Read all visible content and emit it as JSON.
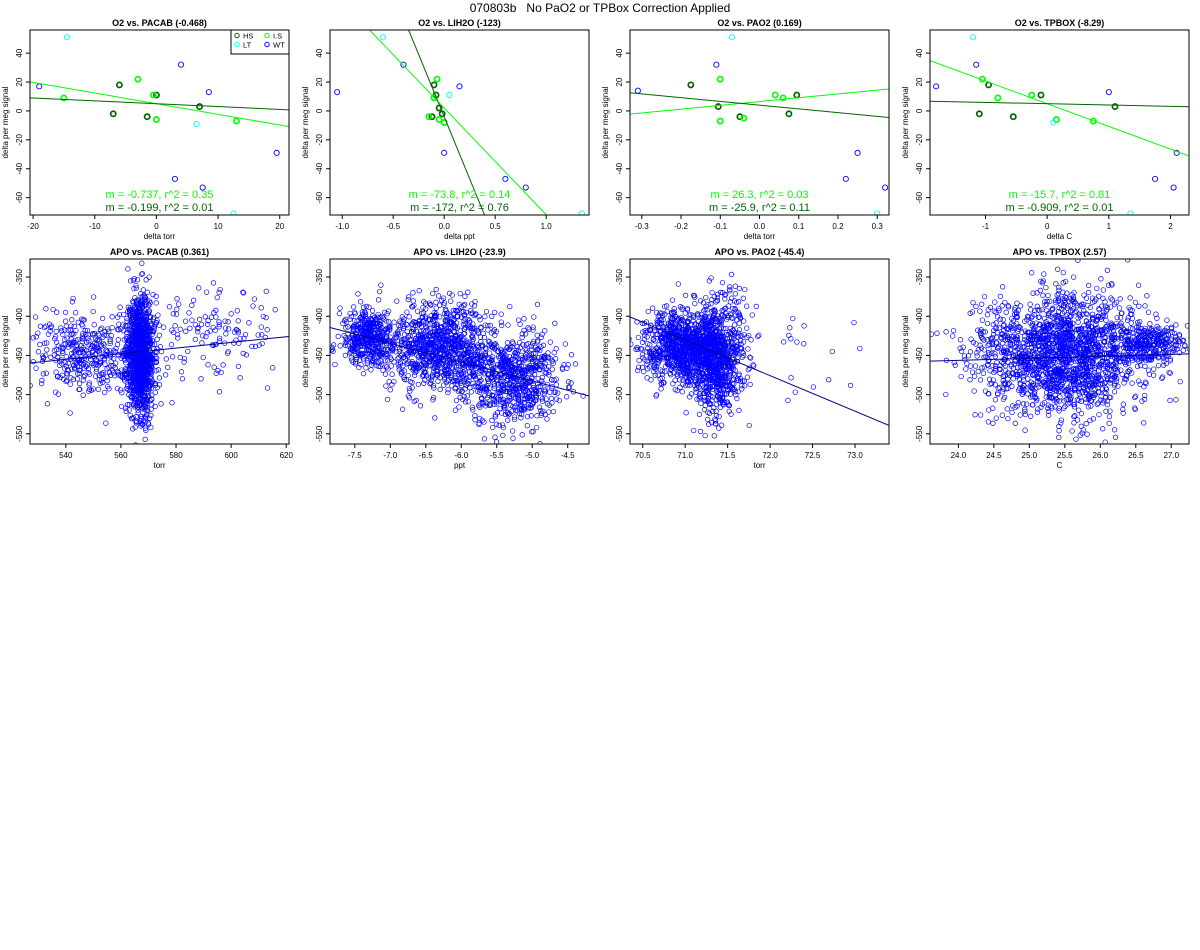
{
  "page": {
    "title": "070803b   No PaO2 or TPBox Correction Applied"
  },
  "colors": {
    "HS": "#006400",
    "I.S": "#00ff00",
    "LT": "#00ffff",
    "WT": "#0000ff",
    "apo": "#0000ff",
    "apo_line": "#00008b"
  },
  "legend": {
    "entries": [
      {
        "label": "HS",
        "color": "#006400"
      },
      {
        "label": "I.S",
        "color": "#00ff00"
      },
      {
        "label": "LT",
        "color": "#00ffff"
      },
      {
        "label": "WT",
        "color": "#0000ff"
      }
    ]
  },
  "chart_data": [
    {
      "type": "scatter",
      "panel": "o2",
      "title": "O2 vs. PACAB (-0.468)",
      "xlabel": "delta torr",
      "ylabel": "delta per meg signal",
      "xlim": [
        -20.5,
        21.5
      ],
      "ylim": [
        -72,
        56
      ],
      "xticks": [
        -20,
        -10,
        0,
        10,
        20
      ],
      "yticks": [
        -60,
        -40,
        -20,
        0,
        20,
        40
      ],
      "show_legend": true,
      "series": [
        {
          "name": "HS",
          "points": [
            [
              -6,
              18
            ],
            [
              -7,
              -2
            ],
            [
              -1.5,
              -4
            ],
            [
              0,
              11
            ],
            [
              7,
              3
            ]
          ]
        },
        {
          "name": "I.S",
          "points": [
            [
              -15,
              9
            ],
            [
              -3,
              22
            ],
            [
              -0.5,
              11
            ],
            [
              0,
              -6
            ],
            [
              13,
              -7
            ]
          ]
        },
        {
          "name": "LT",
          "points": [
            [
              -14.5,
              51
            ],
            [
              6.5,
              -9
            ],
            [
              12.5,
              -71
            ]
          ]
        },
        {
          "name": "WT",
          "points": [
            [
              -19,
              17
            ],
            [
              4,
              32
            ],
            [
              8.5,
              13
            ],
            [
              3,
              -47
            ],
            [
              7.5,
              -53
            ],
            [
              19.5,
              -29
            ]
          ]
        }
      ],
      "fits": [
        {
          "series": "I.S",
          "m": -0.737,
          "b": 5,
          "label": "m = -0.737, r^2 = 0.35"
        },
        {
          "series": "HS",
          "m": -0.199,
          "b": 5,
          "label": "m = -0.199, r^2 = 0.01"
        }
      ]
    },
    {
      "type": "scatter",
      "panel": "o2",
      "title": "O2 vs. LIH2O (-123)",
      "xlabel": "delta ppt",
      "ylabel": "delta per meg signal",
      "xlim": [
        -1.12,
        1.42
      ],
      "ylim": [
        -72,
        56
      ],
      "xticks": [
        -1.0,
        -0.5,
        0.0,
        0.5,
        1.0
      ],
      "yticks": [
        -60,
        -40,
        -20,
        0,
        20,
        40
      ],
      "xtick_labels": [
        "-1.0",
        "-0.5",
        "0.0",
        "0.5",
        "1.0"
      ],
      "show_legend": false,
      "series": [
        {
          "name": "HS",
          "points": [
            [
              -0.1,
              18
            ],
            [
              -0.08,
              11
            ],
            [
              -0.05,
              2
            ],
            [
              -0.12,
              -4
            ],
            [
              -0.02,
              -2
            ]
          ]
        },
        {
          "name": "I.S",
          "points": [
            [
              -0.07,
              22
            ],
            [
              -0.1,
              9
            ],
            [
              -0.05,
              -6
            ],
            [
              0.0,
              -8
            ],
            [
              -0.15,
              -4
            ]
          ]
        },
        {
          "name": "LT",
          "points": [
            [
              -0.6,
              51
            ],
            [
              1.35,
              -71
            ],
            [
              0.05,
              11
            ]
          ]
        },
        {
          "name": "WT",
          "points": [
            [
              -1.05,
              13
            ],
            [
              -0.4,
              32
            ],
            [
              0.15,
              17
            ],
            [
              0.0,
              -29
            ],
            [
              0.6,
              -47
            ],
            [
              0.8,
              -53
            ]
          ]
        }
      ],
      "fits": [
        {
          "series": "I.S",
          "m": -73.8,
          "b": 2,
          "label": "m = -73.8, r^2 = 0.14"
        },
        {
          "series": "HS",
          "m": -172,
          "b": -4,
          "label": "m = -172, r^2 = 0.76"
        }
      ]
    },
    {
      "type": "scatter",
      "panel": "o2",
      "title": "O2 vs. PAO2 (0.169)",
      "xlabel": "delta torr",
      "ylabel": "delta per meg signal",
      "xlim": [
        -0.33,
        0.33
      ],
      "ylim": [
        -72,
        56
      ],
      "xticks": [
        -0.3,
        -0.2,
        -0.1,
        0.0,
        0.1,
        0.2,
        0.3
      ],
      "yticks": [
        -60,
        -40,
        -20,
        0,
        20,
        40
      ],
      "xtick_labels": [
        "-0.3",
        "-0.2",
        "-0.1",
        "0.0",
        "0.1",
        "0.2",
        "0.3"
      ],
      "show_legend": false,
      "series": [
        {
          "name": "HS",
          "points": [
            [
              -0.175,
              18
            ],
            [
              -0.105,
              3
            ],
            [
              -0.05,
              -4
            ],
            [
              0.075,
              -2
            ],
            [
              0.095,
              11
            ]
          ]
        },
        {
          "name": "I.S",
          "points": [
            [
              -0.1,
              22
            ],
            [
              -0.1,
              -7
            ],
            [
              -0.04,
              -5
            ],
            [
              0.04,
              11
            ],
            [
              0.06,
              9
            ]
          ]
        },
        {
          "name": "LT",
          "points": [
            [
              -0.07,
              51
            ],
            [
              0.3,
              -71
            ]
          ]
        },
        {
          "name": "WT",
          "points": [
            [
              -0.31,
              14
            ],
            [
              -0.11,
              32
            ],
            [
              0.25,
              -29
            ],
            [
              0.22,
              -47
            ],
            [
              0.32,
              -53
            ]
          ]
        }
      ],
      "fits": [
        {
          "series": "I.S",
          "m": 26.3,
          "b": 6.5,
          "label": "m = 26.3, r^2 = 0.03"
        },
        {
          "series": "HS",
          "m": -25.9,
          "b": 4,
          "label": "m = -25.9, r^2 = 0.11"
        }
      ]
    },
    {
      "type": "scatter",
      "panel": "o2",
      "title": "O2 vs. TPBOX (-8.29)",
      "xlabel": "delta C",
      "ylabel": "delta per meg signal",
      "xlim": [
        -1.9,
        2.3
      ],
      "ylim": [
        -72,
        56
      ],
      "xticks": [
        -1,
        0,
        1,
        2
      ],
      "yticks": [
        -60,
        -40,
        -20,
        0,
        20,
        40
      ],
      "show_legend": false,
      "series": [
        {
          "name": "HS",
          "points": [
            [
              -0.95,
              18
            ],
            [
              -1.1,
              -2
            ],
            [
              -0.55,
              -4
            ],
            [
              -0.1,
              11
            ],
            [
              1.1,
              3
            ]
          ]
        },
        {
          "name": "I.S",
          "points": [
            [
              -1.05,
              22
            ],
            [
              -0.8,
              9
            ],
            [
              -0.25,
              11
            ],
            [
              0.15,
              -6
            ],
            [
              0.75,
              -7
            ]
          ]
        },
        {
          "name": "LT",
          "points": [
            [
              -1.2,
              51
            ],
            [
              1.35,
              -71
            ],
            [
              0.1,
              -8
            ]
          ]
        },
        {
          "name": "WT",
          "points": [
            [
              -1.8,
              17
            ],
            [
              -1.15,
              32
            ],
            [
              1.0,
              13
            ],
            [
              1.75,
              -47
            ],
            [
              2.05,
              -53
            ],
            [
              2.1,
              -29
            ]
          ]
        }
      ],
      "fits": [
        {
          "series": "I.S",
          "m": -15.7,
          "b": 5,
          "label": "m = -15.7, r^2 = 0.81"
        },
        {
          "series": "HS",
          "m": -0.909,
          "b": 5,
          "label": "m = -0.909, r^2 = 0.01"
        }
      ]
    },
    {
      "type": "scatter",
      "panel": "apo",
      "title": "APO vs. PACAB (0.361)",
      "xlabel": "torr",
      "ylabel": "delta per meg signal",
      "xlim": [
        527,
        621
      ],
      "ylim": [
        -563,
        -327
      ],
      "xticks": [
        540,
        560,
        580,
        600,
        620
      ],
      "yticks": [
        -550,
        -500,
        -450,
        -400,
        -350
      ],
      "cloud": [
        {
          "cx": 567,
          "cy": -450,
          "sx": 2.5,
          "sy": 38,
          "n": 1100,
          "seed": 11
        },
        {
          "cx": 548,
          "cy": -450,
          "sx": 10,
          "sy": 28,
          "n": 380,
          "seed": 12
        },
        {
          "cx": 592,
          "cy": -420,
          "sx": 14,
          "sy": 30,
          "n": 140,
          "seed": 13
        }
      ],
      "fit": {
        "m": 0.361,
        "b": -650
      }
    },
    {
      "type": "scatter",
      "panel": "apo",
      "title": "APO vs. LIH2O (-23.9)",
      "xlabel": "ppt",
      "ylabel": "delta per meg signal",
      "xlim": [
        -7.85,
        -4.2
      ],
      "ylim": [
        -563,
        -327
      ],
      "xticks": [
        -7.5,
        -7.0,
        -6.5,
        -6.0,
        -5.5,
        -5.0,
        -4.5
      ],
      "yticks": [
        -550,
        -500,
        -450,
        -400,
        -350
      ],
      "xtick_labels": [
        "-7.5",
        "-7.0",
        "-6.5",
        "-6.0",
        "-5.5",
        "-5.0",
        "-4.5"
      ],
      "cloud": [
        {
          "cx": -7.3,
          "cy": -428,
          "sx": 0.2,
          "sy": 18,
          "n": 420,
          "seed": 21
        },
        {
          "cx": -6.3,
          "cy": -440,
          "sx": 0.35,
          "sy": 28,
          "n": 900,
          "seed": 22
        },
        {
          "cx": -5.3,
          "cy": -480,
          "sx": 0.35,
          "sy": 30,
          "n": 700,
          "seed": 23
        }
      ],
      "fit": {
        "m": -23.9,
        "b": -602
      }
    },
    {
      "type": "scatter",
      "panel": "apo",
      "title": "APO vs. PAO2 (-45.4)",
      "xlabel": "torr",
      "ylabel": "delta per meg signal",
      "xlim": [
        70.35,
        73.4
      ],
      "ylim": [
        -563,
        -327
      ],
      "xticks": [
        70.5,
        71.0,
        71.5,
        72.0,
        72.5,
        73.0
      ],
      "yticks": [
        -550,
        -500,
        -450,
        -400,
        -350
      ],
      "xtick_labels": [
        "70.5",
        "71.0",
        "71.5",
        "72.0",
        "72.5",
        "73.0"
      ],
      "cloud": [
        {
          "cx": 70.95,
          "cy": -438,
          "sx": 0.22,
          "sy": 22,
          "n": 800,
          "seed": 31
        },
        {
          "cx": 71.35,
          "cy": -452,
          "sx": 0.17,
          "sy": 36,
          "n": 900,
          "seed": 32
        },
        {
          "cx": 72.3,
          "cy": -455,
          "sx": 0.35,
          "sy": 30,
          "n": 22,
          "seed": 33
        }
      ],
      "fit": {
        "m": -45.4,
        "b": 2793
      }
    },
    {
      "type": "scatter",
      "panel": "apo",
      "title": "APO vs. TPBOX (2.57)",
      "xlabel": "C",
      "ylabel": "delta per meg signal",
      "xlim": [
        23.6,
        27.25
      ],
      "ylim": [
        -563,
        -327
      ],
      "xticks": [
        24.0,
        24.5,
        25.0,
        25.5,
        26.0,
        26.5,
        27.0
      ],
      "yticks": [
        -550,
        -500,
        -450,
        -400,
        -350
      ],
      "xtick_labels": [
        "24.0",
        "24.5",
        "25.0",
        "25.5",
        "26.0",
        "26.5",
        "27.0"
      ],
      "cloud": [
        {
          "cx": 25.5,
          "cy": -448,
          "sx": 0.55,
          "sy": 38,
          "n": 1700,
          "seed": 41
        },
        {
          "cx": 26.7,
          "cy": -435,
          "sx": 0.25,
          "sy": 14,
          "n": 280,
          "seed": 42
        },
        {
          "cx": 24.3,
          "cy": -445,
          "sx": 0.3,
          "sy": 30,
          "n": 60,
          "seed": 43
        }
      ],
      "fit": {
        "m": 2.57,
        "b": -518
      }
    }
  ]
}
